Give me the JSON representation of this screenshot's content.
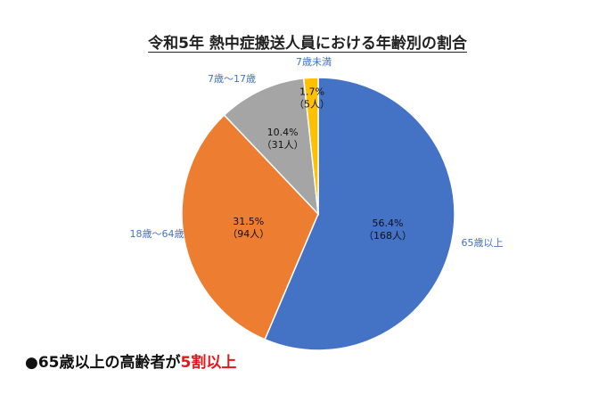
{
  "title": "令和5年  熱中症搬送人員における年齢別の割合",
  "footnote": {
    "bullet": "●",
    "text": "65歳以上の高齢者が",
    "highlight": "5割以上"
  },
  "colors": {
    "label_text": "#4472c4",
    "footnote_highlight": "#e8141b"
  },
  "chart_data": {
    "type": "pie",
    "title": "令和5年  熱中症搬送人員における年齢別の割合",
    "start_angle_deg": 0,
    "direction": "clockwise",
    "slices": [
      {
        "label": "65歳以上",
        "percent": 56.4,
        "percent_text": "56.4%",
        "count_text": "（168人）",
        "color": "#4472c4"
      },
      {
        "label": "18歳～64歳",
        "percent": 31.5,
        "percent_text": "31.5%",
        "count_text": "（94人）",
        "color": "#ed7d31"
      },
      {
        "label": "7歳～17歳",
        "percent": 10.4,
        "percent_text": "10.4%",
        "count_text": "（31人）",
        "color": "#a5a5a5"
      },
      {
        "label": "7歳未満",
        "percent": 1.7,
        "percent_text": "1.7%",
        "count_text": "（5人）",
        "color": "#ffc000"
      }
    ]
  }
}
